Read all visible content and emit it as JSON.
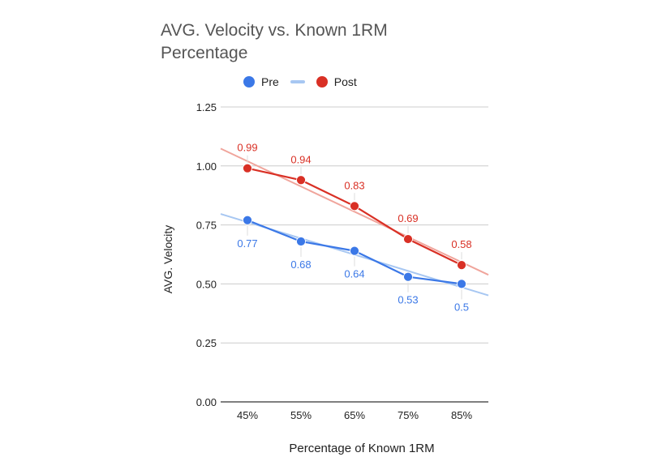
{
  "chart_data": {
    "type": "line",
    "title": "AVG. Velocity vs. Known 1RM Percentage",
    "xlabel": "Percentage of Known 1RM",
    "ylabel": "AVG. Velocity",
    "categories": [
      "45%",
      "55%",
      "65%",
      "75%",
      "85%"
    ],
    "ylim": [
      0,
      1.25
    ],
    "yticks": [
      "0.00",
      "0.25",
      "0.50",
      "0.75",
      "1.00",
      "1.25"
    ],
    "grid": true,
    "legend_position": "top",
    "series": [
      {
        "name": "Pre",
        "values": [
          0.77,
          0.68,
          0.64,
          0.53,
          0.5
        ],
        "labels": [
          "0.77",
          "0.68",
          "0.64",
          "0.53",
          "0.5"
        ],
        "color": "#3b78e7",
        "trend_color": "#a7c7f2"
      },
      {
        "name": "Post",
        "values": [
          0.99,
          0.94,
          0.83,
          0.69,
          0.58
        ],
        "labels": [
          "0.99",
          "0.94",
          "0.83",
          "0.69",
          "0.58"
        ],
        "color": "#d93025",
        "trend_color": "#f0a59c"
      }
    ]
  }
}
